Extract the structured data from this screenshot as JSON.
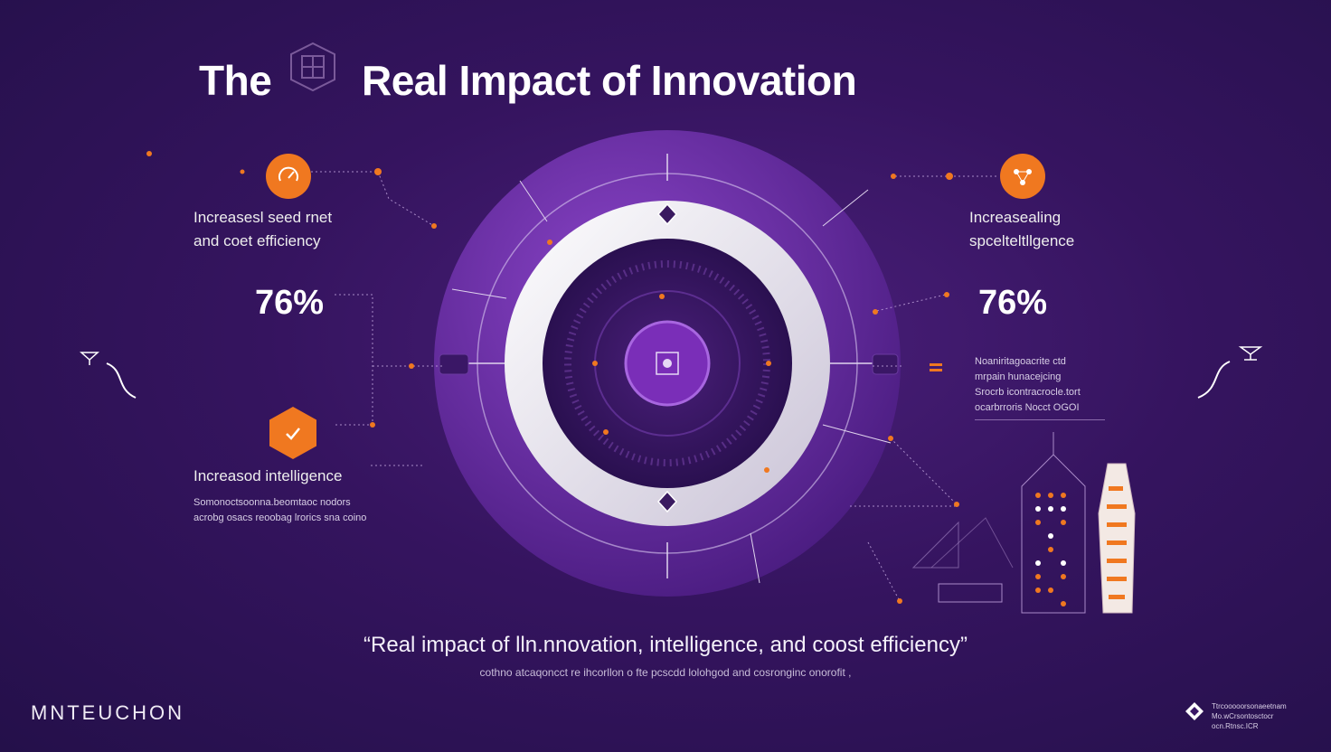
{
  "header": {
    "title_part1": "The",
    "title_part2": "Real Impact of Innovation",
    "emblem_icon": "cube-emblem-icon"
  },
  "left_panel": {
    "top_label_line1": "Increasesl seed rnet",
    "top_label_line2": "and coet efficiency",
    "top_icon": "gauge-icon",
    "percentage": "76%",
    "bottom_label": "Increasod intelligence",
    "bottom_icon": "check-hexagon-icon",
    "bottom_text_line1": "Somonoctsoonna.beomtaoc nodors",
    "bottom_text_line2": "acrobg osacs reoobag lrorics sna coino"
  },
  "right_panel": {
    "top_label_line1": "Increasealing",
    "top_label_line2": "spcelteltllgence",
    "top_icon": "network-icon",
    "percentage": "76%",
    "text_line1": "Noaniritagoacrite ctd",
    "text_line2": "mrpain hunacejcing",
    "text_line3": "Srocrb icontracrocle.tort",
    "text_line4": "ocarbrroris Nocct OGOI"
  },
  "center": {
    "core_icon": "ai-chip-icon"
  },
  "footer": {
    "quote": "“Real impact of lln.nnovation, intelligence, and coost efficiency”",
    "subquote": "cothno atcaqoncct re ihcorllon o fte pcscdd lolohgod and cosronginc onorofit ,",
    "brand": "MNTEUCHON",
    "corner_text_line1": "Ttrcooooorsonaeetnam",
    "corner_text_line2": "Mo.wCrsontosctocr ocn.Rtnsc.ICR",
    "corner_icon": "diamond-logo-icon"
  },
  "colors": {
    "accent": "#f07820",
    "bg_dark": "#24104a",
    "bg_mid": "#4a1f7a",
    "ring_light": "#eeeaf2",
    "purple_ring": "#6a2ea8"
  }
}
